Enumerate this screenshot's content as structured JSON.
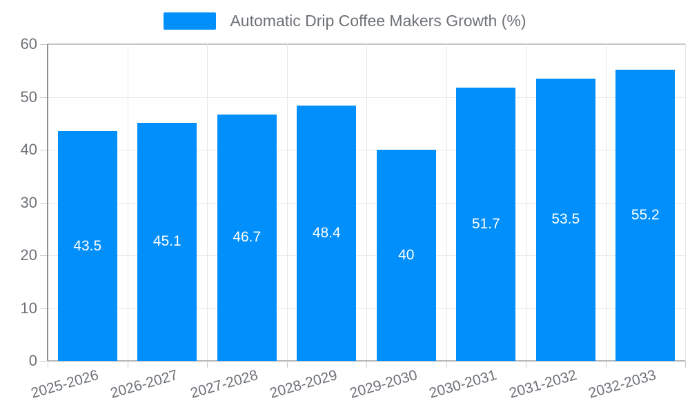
{
  "chart_data": {
    "type": "bar",
    "title": "Automatic Drip Coffee Makers Growth (%)",
    "categories": [
      "2025-2026",
      "2026-2027",
      "2027-2028",
      "2028-2029",
      "2029-2030",
      "2030-2031",
      "2031-2032",
      "2032-2033"
    ],
    "values": [
      43.5,
      45.1,
      46.7,
      48.4,
      40,
      51.7,
      53.5,
      55.2
    ],
    "data_labels": [
      "43.5",
      "45.1",
      "46.7",
      "48.4",
      "40",
      "51.7",
      "53.5",
      "55.2"
    ],
    "xlabel": "",
    "ylabel": "",
    "ylim": [
      0,
      60
    ],
    "yticks": [
      0,
      10,
      20,
      30,
      40,
      50,
      60
    ],
    "grid": "on",
    "legend_position": "top-center",
    "legend_entries": [
      "Automatic Drip Coffee Makers Growth (%)"
    ],
    "colors": {
      "bar": "#008FFB",
      "bar_label_text": "#ffffff",
      "axis_label_text": "#6e7277",
      "legend_text": "#6e7277",
      "gridline": "#e7e7e7"
    }
  }
}
